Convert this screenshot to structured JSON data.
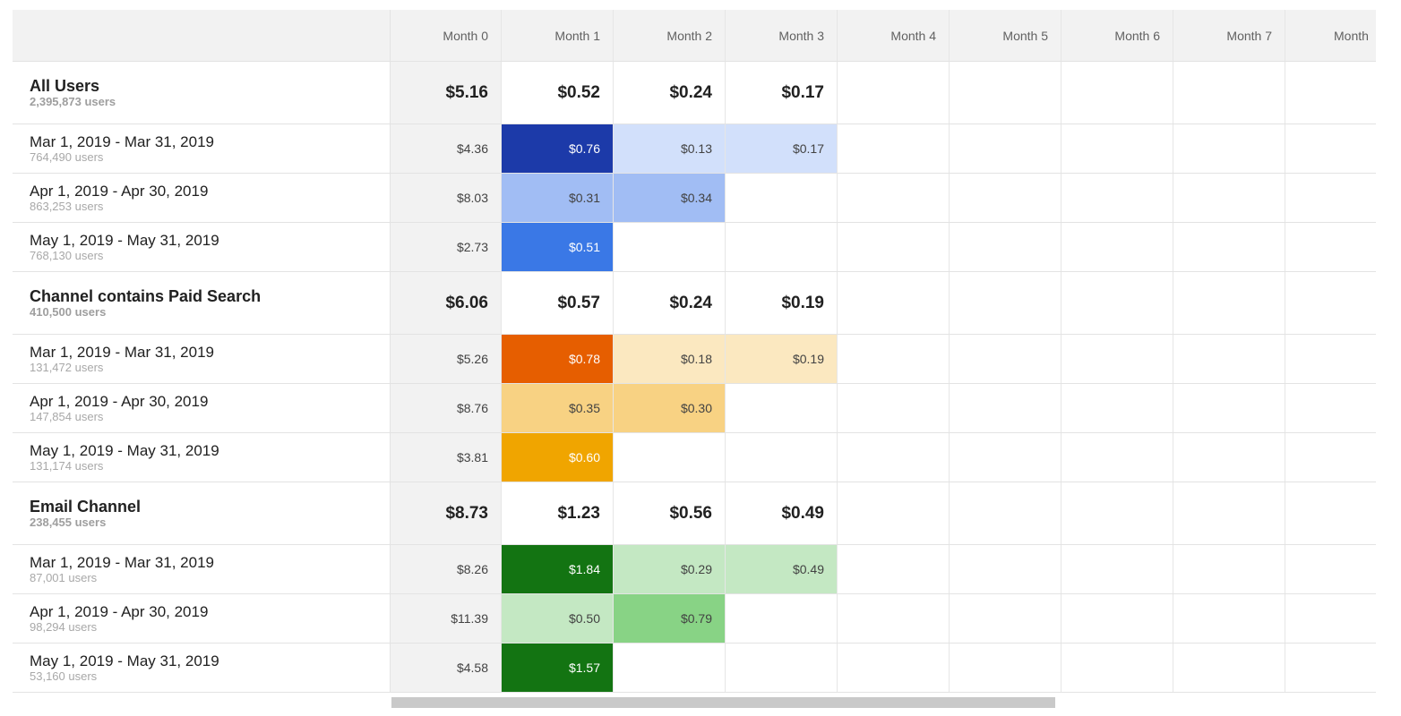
{
  "columns": [
    "Month 0",
    "Month 1",
    "Month 2",
    "Month 3",
    "Month 4",
    "Month 5",
    "Month 6",
    "Month 7",
    "Month"
  ],
  "rows": [
    {
      "type": "group",
      "name": "All Users",
      "users": "2,395,873 users",
      "values": [
        "$5.16",
        "$0.52",
        "$0.24",
        "$0.17",
        "",
        "",
        "",
        "",
        ""
      ],
      "colors": [
        null,
        null,
        null,
        null,
        null,
        null,
        null,
        null,
        null
      ]
    },
    {
      "type": "period",
      "name": "Mar 1, 2019 - Mar 31, 2019",
      "users": "764,490 users",
      "values": [
        "$4.36",
        "$0.76",
        "$0.13",
        "$0.17",
        "",
        "",
        "",
        "",
        ""
      ],
      "colors": [
        null,
        "#1c3aa9",
        "#d2e0fb",
        "#d2e0fb",
        null,
        null,
        null,
        null,
        null
      ]
    },
    {
      "type": "period",
      "name": "Apr 1, 2019 - Apr 30, 2019",
      "users": "863,253 users",
      "values": [
        "$8.03",
        "$0.31",
        "$0.34",
        "",
        "",
        "",
        "",
        "",
        ""
      ],
      "colors": [
        null,
        "#a1bdf4",
        "#a1bdf4",
        null,
        null,
        null,
        null,
        null,
        null
      ]
    },
    {
      "type": "period",
      "name": "May 1, 2019 - May 31, 2019",
      "users": "768,130 users",
      "values": [
        "$2.73",
        "$0.51",
        "",
        "",
        "",
        "",
        "",
        "",
        ""
      ],
      "colors": [
        null,
        "#3a78e6",
        null,
        null,
        null,
        null,
        null,
        null,
        null
      ]
    },
    {
      "type": "group",
      "name": "Channel contains Paid Search",
      "users": "410,500 users",
      "values": [
        "$6.06",
        "$0.57",
        "$0.24",
        "$0.19",
        "",
        "",
        "",
        "",
        ""
      ],
      "colors": [
        null,
        null,
        null,
        null,
        null,
        null,
        null,
        null,
        null
      ]
    },
    {
      "type": "period",
      "name": "Mar 1, 2019 - Mar 31, 2019",
      "users": "131,472 users",
      "values": [
        "$5.26",
        "$0.78",
        "$0.18",
        "$0.19",
        "",
        "",
        "",
        "",
        ""
      ],
      "colors": [
        null,
        "#e65e00",
        "#fbe8c0",
        "#fbe8c0",
        null,
        null,
        null,
        null,
        null
      ]
    },
    {
      "type": "period",
      "name": "Apr 1, 2019 - Apr 30, 2019",
      "users": "147,854 users",
      "values": [
        "$8.76",
        "$0.35",
        "$0.30",
        "",
        "",
        "",
        "",
        "",
        ""
      ],
      "colors": [
        null,
        "#f8d283",
        "#f8d283",
        null,
        null,
        null,
        null,
        null,
        null
      ]
    },
    {
      "type": "period",
      "name": "May 1, 2019 - May 31, 2019",
      "users": "131,174 users",
      "values": [
        "$3.81",
        "$0.60",
        "",
        "",
        "",
        "",
        "",
        "",
        ""
      ],
      "colors": [
        null,
        "#f0a500",
        null,
        null,
        null,
        null,
        null,
        null,
        null
      ]
    },
    {
      "type": "group",
      "name": "Email Channel",
      "users": "238,455 users",
      "values": [
        "$8.73",
        "$1.23",
        "$0.56",
        "$0.49",
        "",
        "",
        "",
        "",
        ""
      ],
      "colors": [
        null,
        null,
        null,
        null,
        null,
        null,
        null,
        null,
        null
      ]
    },
    {
      "type": "period",
      "name": "Mar 1, 2019 - Mar 31, 2019",
      "users": "87,001 users",
      "values": [
        "$8.26",
        "$1.84",
        "$0.29",
        "$0.49",
        "",
        "",
        "",
        "",
        ""
      ],
      "colors": [
        null,
        "#137412",
        "#c4e8c3",
        "#c4e8c3",
        null,
        null,
        null,
        null,
        null
      ]
    },
    {
      "type": "period",
      "name": "Apr 1, 2019 - Apr 30, 2019",
      "users": "98,294 users",
      "values": [
        "$11.39",
        "$0.50",
        "$0.79",
        "",
        "",
        "",
        "",
        "",
        ""
      ],
      "colors": [
        null,
        "#c4e8c3",
        "#88d385",
        null,
        null,
        null,
        null,
        null,
        null
      ]
    },
    {
      "type": "period",
      "name": "May 1, 2019 - May 31, 2019",
      "users": "53,160 users",
      "values": [
        "$4.58",
        "$1.57",
        "",
        "",
        "",
        "",
        "",
        "",
        ""
      ],
      "colors": [
        null,
        "#137412",
        null,
        null,
        null,
        null,
        null,
        null,
        null
      ]
    }
  ],
  "dark_text_color": "#ffffff"
}
